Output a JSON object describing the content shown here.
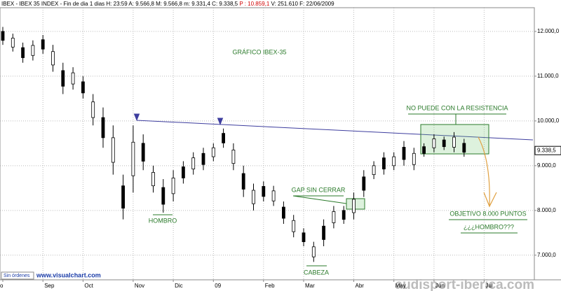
{
  "header": {
    "segments": [
      "IBEX - IBEX 35 INDEX - Fin de dia 1 dias H: 23:59  A: 9.566,8  M: 9.566,8  m: 9.331,4  C: 9.338,5",
      "P : 10.859,1",
      "V: 251.610  F: 22/06/2009"
    ]
  },
  "footer": {
    "status": "Sin órdenes",
    "site": "www.visualchart.com",
    "watermark": "audisport-iberica.com"
  },
  "chart_data": {
    "type": "range-bar",
    "title": "GRÁFICO IBEX-35",
    "categories": [
      "o",
      null,
      null,
      null,
      "Sep",
      null,
      null,
      null,
      "Oct",
      null,
      null,
      null,
      null,
      "Nov",
      null,
      null,
      null,
      "Dic",
      null,
      null,
      null,
      "09",
      null,
      null,
      null,
      null,
      "Feb",
      null,
      null,
      null,
      "Mar",
      null,
      null,
      null,
      null,
      "Abr",
      null,
      null,
      null,
      "May",
      null,
      null,
      null,
      "Jun",
      null,
      null,
      null,
      null,
      "Jul"
    ],
    "series": [
      {
        "name": "low",
        "color": "#000000",
        "values": [
          11700,
          11550,
          11300,
          11350,
          11500,
          11100,
          10600,
          10700,
          10500,
          9900,
          9400,
          8800,
          7800,
          8400,
          8900,
          8400,
          7950,
          8200,
          8600,
          8800,
          8900,
          9100,
          9400,
          8900,
          8300,
          8000,
          8200,
          8100,
          7700,
          7400,
          7200,
          6850,
          7200,
          7600,
          7700,
          7800,
          8300,
          8700,
          8800,
          8900,
          9000,
          8900,
          9200,
          9300,
          9350,
          9300,
          9200,
          null,
          null
        ]
      },
      {
        "name": "high",
        "color": "#000000",
        "values": [
          12100,
          11950,
          11750,
          11800,
          11920,
          11700,
          11300,
          11200,
          11000,
          10600,
          10300,
          9900,
          8800,
          9900,
          9700,
          9000,
          8700,
          8900,
          9100,
          9300,
          9400,
          9500,
          9830,
          9500,
          9000,
          8600,
          8650,
          8550,
          8200,
          7900,
          7600,
          7300,
          7800,
          8100,
          8100,
          8400,
          8900,
          9100,
          9300,
          9300,
          9550,
          9400,
          9500,
          9700,
          9650,
          9750,
          9600,
          null,
          null
        ]
      }
    ],
    "last_price": {
      "value": 9338.5,
      "label": "9.338,5"
    },
    "ylim": [
      6450,
      12530
    ],
    "yticks": [
      {
        "value": 7000,
        "label": "7.000,0"
      },
      {
        "value": 8000,
        "label": "8.000,0"
      },
      {
        "value": 9000,
        "label": "9.000,0"
      },
      {
        "value": 10000,
        "label": "10.000,0"
      },
      {
        "value": 11000,
        "label": "11.000,0"
      },
      {
        "value": 12000,
        "label": "12.000,0"
      }
    ],
    "grid": true,
    "annotations": [
      "NO PUEDE CON LA RESISTENCIA",
      "GAP SIN CERRAR",
      "HOMBRO",
      "CABEZA",
      "OBJETIVO 8.000 PUNTOS",
      "¿¿¿HOMBRO???"
    ]
  }
}
